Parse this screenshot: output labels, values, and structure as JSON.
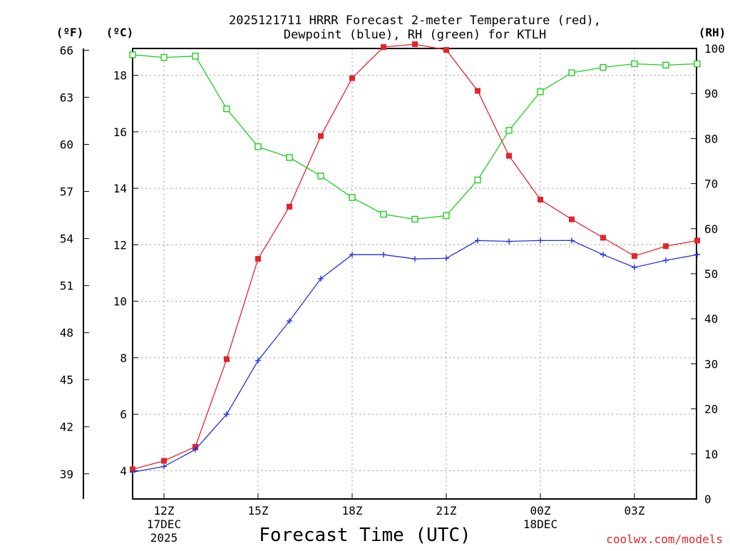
{
  "chart_data": {
    "type": "line",
    "title": [
      "2025121711 HRRR Forecast 2-meter Temperature (red),",
      "Dewpoint (blue), RH (green) for KTLH"
    ],
    "xlabel": "Forecast Time (UTC)",
    "credit": "coolwx.com/models",
    "units": {
      "fahrenheit": "(ºF)",
      "celsius": "(ºC)",
      "rh": "(RH)"
    },
    "x": [
      "11Z",
      "12Z",
      "13Z",
      "14Z",
      "15Z",
      "16Z",
      "17Z",
      "18Z",
      "19Z",
      "20Z",
      "21Z",
      "22Z",
      "23Z",
      "00Z",
      "01Z",
      "02Z",
      "03Z",
      "04Z",
      "05Z"
    ],
    "x_ticks": [
      {
        "index": 1,
        "lines": [
          "12Z",
          "17DEC",
          "2025"
        ]
      },
      {
        "index": 4,
        "lines": [
          "15Z"
        ]
      },
      {
        "index": 7,
        "lines": [
          "18Z"
        ]
      },
      {
        "index": 10,
        "lines": [
          "21Z"
        ]
      },
      {
        "index": 13,
        "lines": [
          "00Z",
          "18DEC"
        ]
      },
      {
        "index": 16,
        "lines": [
          "03Z"
        ]
      }
    ],
    "celsius_axis": {
      "range": [
        3.0,
        18.95
      ],
      "ticks": [
        4,
        6,
        8,
        10,
        12,
        14,
        16,
        18
      ]
    },
    "fahrenheit_axis": {
      "ticks": [
        39,
        42,
        45,
        48,
        51,
        54,
        57,
        60,
        63,
        66
      ]
    },
    "rh_axis": {
      "range": [
        0,
        100
      ],
      "ticks": [
        0,
        10,
        20,
        30,
        40,
        50,
        60,
        70,
        80,
        90,
        100
      ]
    },
    "grid": true,
    "series": [
      {
        "name": "2-meter Temperature",
        "color": "#e3242b",
        "axis": "celsius",
        "marker": "filled-square",
        "values": [
          4.05,
          4.35,
          4.85,
          7.95,
          11.5,
          13.35,
          15.85,
          17.9,
          19.0,
          19.1,
          18.9,
          17.45,
          15.15,
          13.6,
          12.9,
          12.25,
          11.6,
          11.95,
          12.15
        ]
      },
      {
        "name": "Dewpoint",
        "color": "#2233dd",
        "axis": "celsius",
        "marker": "plus",
        "values": [
          3.95,
          4.15,
          4.75,
          6.0,
          7.9,
          9.3,
          10.8,
          11.65,
          11.65,
          11.5,
          11.52,
          12.15,
          12.12,
          12.15,
          12.15,
          11.65,
          11.2,
          11.45,
          11.65
        ]
      },
      {
        "name": "RH",
        "color": "#22cc22",
        "axis": "rh",
        "marker": "open-square",
        "values": [
          98.6,
          98.0,
          98.3,
          86.6,
          78.2,
          75.8,
          71.7,
          66.9,
          63.2,
          62.1,
          62.9,
          70.8,
          81.8,
          90.4,
          94.6,
          95.8,
          96.6,
          96.3,
          96.6
        ]
      }
    ]
  }
}
